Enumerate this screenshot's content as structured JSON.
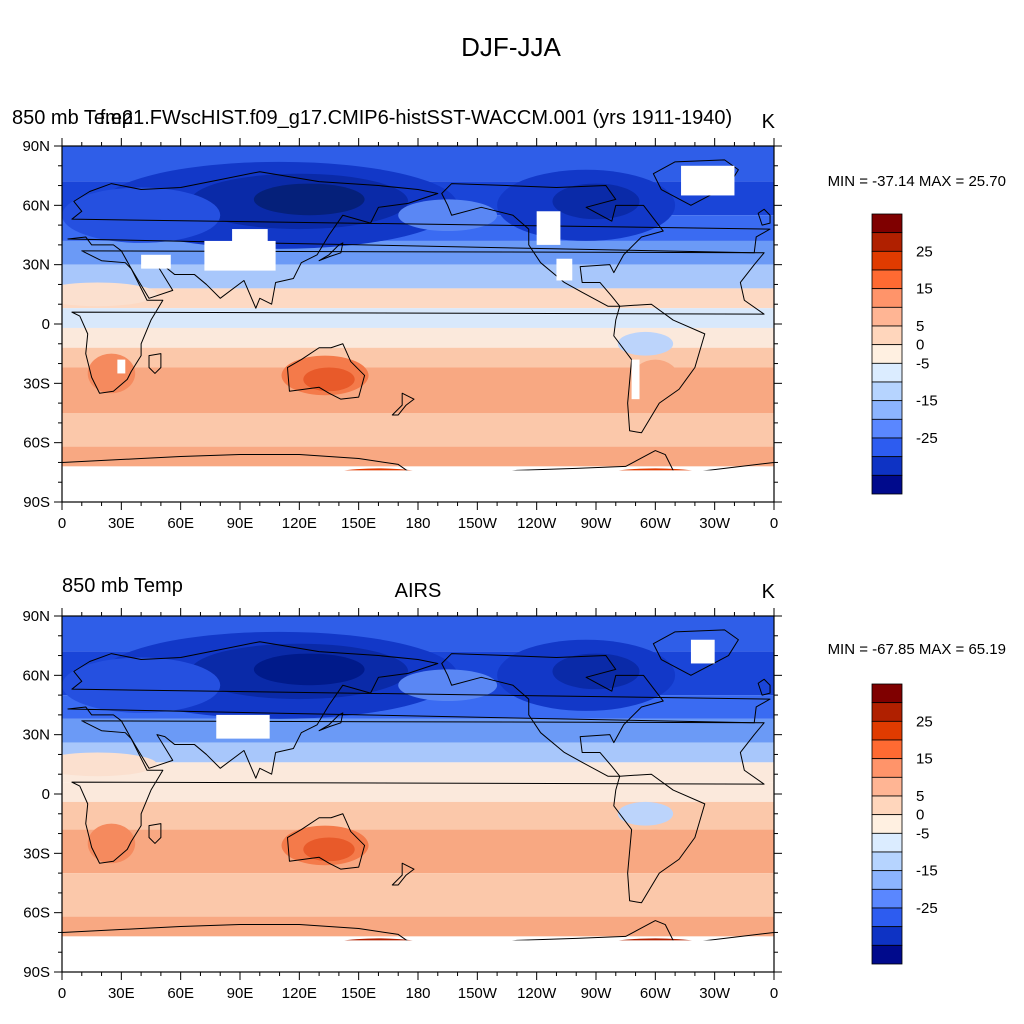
{
  "figure": {
    "title": "DJF-JJA"
  },
  "panels": [
    {
      "left_title": "850 mb Temp",
      "center_title": "f.e21.FWscHIST.f09_g17.CMIP6-histSST-WACCM.001 (yrs 1911-1940)",
      "units": "K",
      "stats": "MIN = -37.14 MAX =  25.70"
    },
    {
      "left_title": "850 mb Temp",
      "center_title": "AIRS",
      "units": "K",
      "stats": "MIN = -67.85 MAX =  65.19"
    }
  ],
  "chart_data": [
    {
      "type": "heatmap",
      "projection": "cylindrical equidistant map, contour-filled",
      "title": "DJF-JJA",
      "left_title": "850 mb Temp",
      "center_title": "f.e21.FWscHIST.f09_g17.CMIP6-histSST-WACCM.001 (yrs 1911-1940)",
      "units": "K",
      "min": -37.14,
      "max": 25.7,
      "x_ticks": [
        "0",
        "30E",
        "60E",
        "90E",
        "120E",
        "150E",
        "180",
        "150W",
        "120W",
        "90W",
        "60W",
        "30W",
        "0"
      ],
      "y_ticks": [
        "90N",
        "60N",
        "30N",
        "0",
        "30S",
        "60S",
        "90S"
      ],
      "xlim": [
        0,
        360
      ],
      "ylim": [
        -90,
        90
      ],
      "color_levels": [
        -30,
        -25,
        -20,
        -15,
        -10,
        -5,
        0,
        5,
        10,
        15,
        20,
        25,
        30
      ],
      "colorbar_labels": [
        "25",
        "15",
        "5",
        "0",
        "-5",
        "-15",
        "-25"
      ],
      "colorbar_label_values": [
        25,
        15,
        5,
        0,
        -5,
        -15,
        -25
      ],
      "legend_position": "right"
    },
    {
      "type": "heatmap",
      "projection": "cylindrical equidistant map, contour-filled",
      "left_title": "850 mb Temp",
      "center_title": "AIRS",
      "units": "K",
      "min": -67.85,
      "max": 65.19,
      "x_ticks": [
        "0",
        "30E",
        "60E",
        "90E",
        "120E",
        "150E",
        "180",
        "150W",
        "120W",
        "90W",
        "60W",
        "30W",
        "0"
      ],
      "y_ticks": [
        "90N",
        "60N",
        "30N",
        "0",
        "30S",
        "60S",
        "90S"
      ],
      "xlim": [
        0,
        360
      ],
      "ylim": [
        -90,
        90
      ],
      "color_levels": [
        -30,
        -25,
        -20,
        -15,
        -10,
        -5,
        0,
        5,
        10,
        15,
        20,
        25,
        30
      ],
      "colorbar_labels": [
        "25",
        "15",
        "5",
        "0",
        "-5",
        "-15",
        "-25"
      ],
      "colorbar_label_values": [
        25,
        15,
        5,
        0,
        -5,
        -15,
        -25
      ],
      "legend_position": "right"
    }
  ],
  "colors": {
    "colorbar": [
      "#7f0000",
      "#b02000",
      "#e03b00",
      "#ff6a32",
      "#ff946a",
      "#ffb594",
      "#ffd6bc",
      "#fff0e1",
      "#dbecff",
      "#b6d4ff",
      "#8cb4ff",
      "#5a87ff",
      "#2d5cf0",
      "#0e33c4",
      "#000a8c"
    ],
    "band": [
      "#0b2fc1",
      "#3a6bf2",
      "#6b9af6",
      "#a8c7fb",
      "#d8e8fb",
      "#fbe9dc",
      "#fbc8aa",
      "#f8a882",
      "#f58a5e"
    ],
    "coast": "#000000"
  }
}
